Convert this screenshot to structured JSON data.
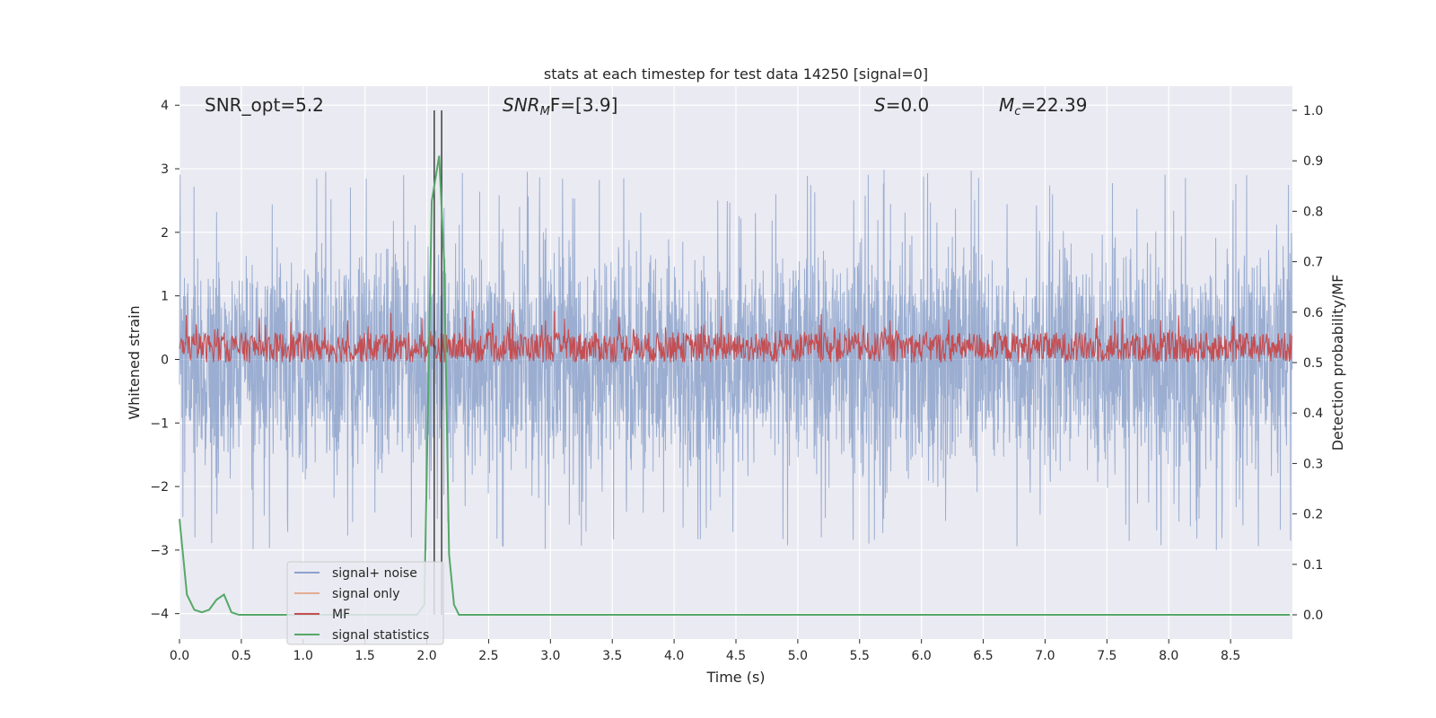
{
  "chart_data": {
    "type": "line",
    "title": "stats at each timestep for test data 14250 [signal=0]",
    "xlabel": "Time (s)",
    "ylabel": "Whitened strain",
    "ylabel_right": "Detection probability/MF",
    "xlim": [
      0,
      9.0
    ],
    "ylim": [
      -4.4,
      4.3
    ],
    "ylim_right": [
      -0.048,
      1.048
    ],
    "x_ticks": [
      "0.0",
      "0.5",
      "1.0",
      "1.5",
      "2.0",
      "2.5",
      "3.0",
      "3.5",
      "4.0",
      "4.5",
      "5.0",
      "5.5",
      "6.0",
      "6.5",
      "7.0",
      "7.5",
      "8.0",
      "8.5"
    ],
    "y_ticks": [
      "4",
      "3",
      "2",
      "1",
      "0",
      "−1",
      "−2",
      "−3",
      "−4"
    ],
    "y_ticks_right": [
      "1.0",
      "0.9",
      "0.8",
      "0.7",
      "0.6",
      "0.5",
      "0.4",
      "0.3",
      "0.2",
      "0.1",
      "0.0"
    ],
    "grid": true,
    "legend_position": "lower-left",
    "annotations": {
      "snr_opt": "SNR_opt=5.2",
      "snr_mf_a": "SNR",
      "snr_mf_sub": "M",
      "snr_mf_b": "F=[3.9]",
      "s_a": "S",
      "s_b": "=0.0",
      "mc_a": "M",
      "mc_sub": "c",
      "mc_b": "=22.39"
    },
    "vertical_lines_x": [
      2.06,
      2.12
    ],
    "series": [
      {
        "name": "signal+ noise",
        "color": "#4c72b0",
        "description_range": [
          -4.0,
          3.9
        ]
      },
      {
        "name": "signal only",
        "color": "#dd8452"
      },
      {
        "name": "MF",
        "color": "#c44e52",
        "description_range": [
          0.0,
          1.0
        ]
      },
      {
        "name": "signal statistics",
        "color": "#55a868",
        "x": [
          0.0,
          0.06,
          0.12,
          0.18,
          0.24,
          0.3,
          0.36,
          0.42,
          0.48,
          1.92,
          1.98,
          2.04,
          2.08,
          2.1,
          2.14,
          2.18,
          2.22,
          2.26,
          8.98
        ],
        "values": [
          0.19,
          0.04,
          0.01,
          0.005,
          0.01,
          0.03,
          0.04,
          0.005,
          0.0,
          0.0,
          0.02,
          0.82,
          0.88,
          0.91,
          0.7,
          0.12,
          0.02,
          0.0,
          0.0
        ]
      }
    ]
  }
}
